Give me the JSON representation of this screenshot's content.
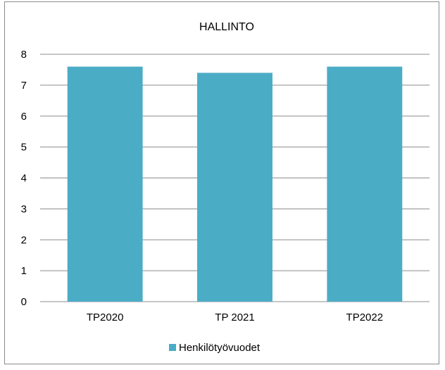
{
  "chart_data": {
    "type": "bar",
    "title": "HALLINTO",
    "categories": [
      "TP2020",
      "TP 2021",
      "TP2022"
    ],
    "series": [
      {
        "name": "Henkilötyövuodet",
        "values": [
          7.6,
          7.4,
          7.6
        ],
        "color": "#4bacc6"
      }
    ],
    "ylim": [
      0,
      8
    ],
    "yticks": [
      "0",
      "1",
      "2",
      "3",
      "4",
      "5",
      "6",
      "7",
      "8"
    ],
    "grid": true,
    "legend_position": "bottom"
  }
}
